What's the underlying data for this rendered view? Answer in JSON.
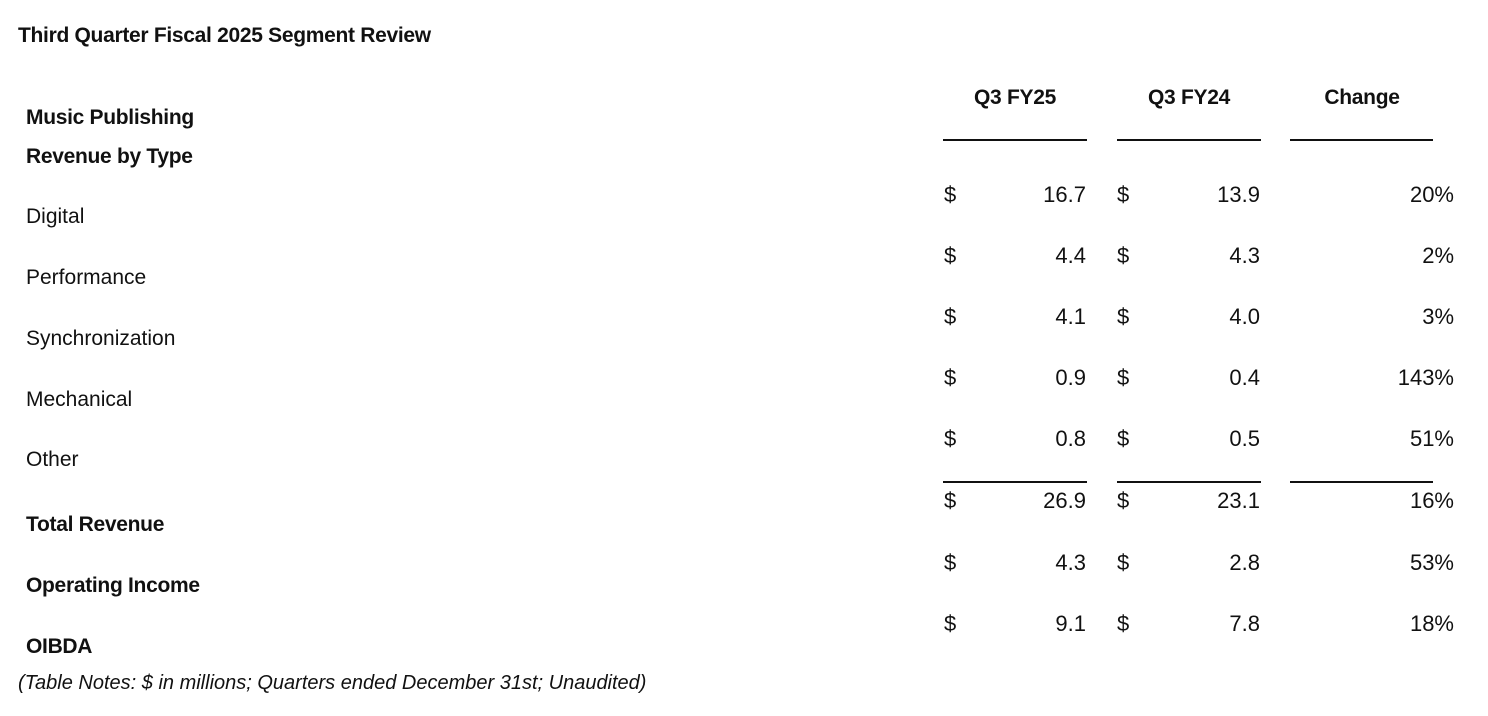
{
  "title": "Third Quarter Fiscal 2025 Segment Review",
  "segment": "Music Publishing",
  "subheading": "Revenue by Type",
  "columns": [
    "Q3 FY25",
    "Q3 FY24",
    "Change"
  ],
  "currency_symbol": "$",
  "rows": [
    {
      "label": "Digital",
      "q3fy25": "16.7",
      "q3fy24": "13.9",
      "change": "20%",
      "bold": false
    },
    {
      "label": "Performance",
      "q3fy25": "4.4",
      "q3fy24": "4.3",
      "change": "2%",
      "bold": false
    },
    {
      "label": "Synchronization",
      "q3fy25": "4.1",
      "q3fy24": "4.0",
      "change": "3%",
      "bold": false
    },
    {
      "label": "Mechanical",
      "q3fy25": "0.9",
      "q3fy24": "0.4",
      "change": "143%",
      "bold": false
    },
    {
      "label": "Other",
      "q3fy25": "0.8",
      "q3fy24": "0.5",
      "change": "51%",
      "bold": false
    },
    {
      "label": "Total Revenue",
      "q3fy25": "26.9",
      "q3fy24": "23.1",
      "change": "16%",
      "bold": true
    },
    {
      "label": "Operating Income",
      "q3fy25": "4.3",
      "q3fy24": "2.8",
      "change": "53%",
      "bold": true
    },
    {
      "label": "OIBDA",
      "q3fy25": "9.1",
      "q3fy24": "7.8",
      "change": "18%",
      "bold": true
    }
  ],
  "note": "(Table Notes: $ in millions; Quarters ended December 31st; Unaudited)"
}
